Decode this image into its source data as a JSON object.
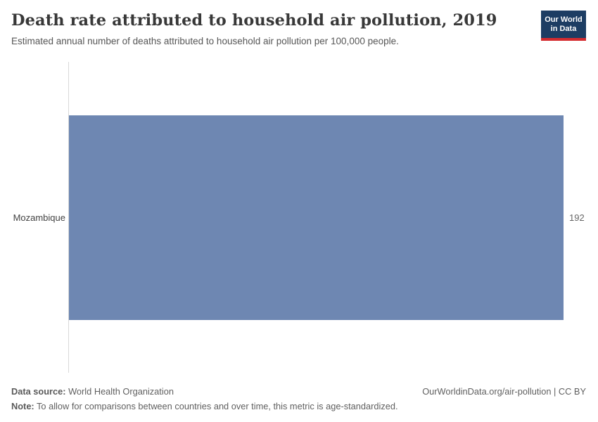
{
  "header": {
    "title": "Death rate attributed to household air pollution, 2019",
    "subtitle": "Estimated annual number of deaths attributed to household air pollution per 100,000 people.",
    "logo": {
      "line1": "Our World",
      "line2": "in Data"
    }
  },
  "chart_data": {
    "type": "bar",
    "orientation": "horizontal",
    "title": "Death rate attributed to household air pollution, 2019",
    "subtitle": "Estimated annual number of deaths attributed to household air pollution per 100,000 people.",
    "categories": [
      "Mozambique"
    ],
    "values": [
      192
    ],
    "value_labels": [
      "192"
    ],
    "xlabel": "",
    "ylabel": "",
    "xlim": [
      0,
      192
    ],
    "grid": false,
    "legend": "none",
    "bar_color": "#6e87b2"
  },
  "footer": {
    "datasource_label": "Data source:",
    "datasource_value": " World Health Organization",
    "note_label": "Note:",
    "note_value": " To allow for comparisons between countries and over time, this metric is age-standardized.",
    "link": "OurWorldinData.org/air-pollution | CC BY"
  },
  "colors": {
    "bar": "#6e87b2",
    "axis_line": "#d9d9d9",
    "title_text": "#383838",
    "subtitle_text": "#565656",
    "logo_bg": "#1d3d63",
    "logo_underline": "#d42b2f"
  }
}
